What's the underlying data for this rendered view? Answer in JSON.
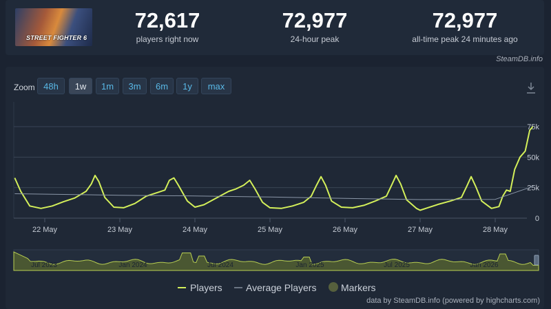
{
  "header": {
    "game_logo_text": "STREET FIGHTER 6",
    "stats": [
      {
        "value": "72,617",
        "label": "players right now"
      },
      {
        "value": "72,977",
        "label": "24-hour peak"
      },
      {
        "value": "72,977",
        "label": "all-time peak 24 minutes ago"
      }
    ],
    "credit": "SteamDB.info"
  },
  "toolbar": {
    "zoom_label": "Zoom",
    "zoom_options": [
      "48h",
      "1w",
      "1m",
      "3m",
      "6m",
      "1y",
      "max"
    ],
    "active_zoom": "1w",
    "download_icon": "download-icon"
  },
  "chart_data": {
    "type": "line",
    "xlabel": "",
    "ylabel": "",
    "x_tick_labels": [
      "22 May",
      "23 May",
      "24 May",
      "25 May",
      "26 May",
      "27 May",
      "28 May"
    ],
    "y_tick_labels": [
      "0",
      "25k",
      "50k",
      "75k"
    ],
    "ylim": [
      0,
      75000
    ],
    "x_range_days": [
      -0.4,
      6.5
    ],
    "grid": true,
    "series": [
      {
        "name": "Players",
        "color": "#d4f05a",
        "points": [
          [
            -0.4,
            33000
          ],
          [
            -0.32,
            22000
          ],
          [
            -0.2,
            10000
          ],
          [
            -0.05,
            8000
          ],
          [
            0.1,
            10000
          ],
          [
            0.25,
            13500
          ],
          [
            0.4,
            16500
          ],
          [
            0.55,
            22000
          ],
          [
            0.62,
            28000
          ],
          [
            0.67,
            35000
          ],
          [
            0.72,
            30000
          ],
          [
            0.8,
            17000
          ],
          [
            0.92,
            9000
          ],
          [
            1.05,
            8500
          ],
          [
            1.2,
            12000
          ],
          [
            1.35,
            18000
          ],
          [
            1.5,
            21000
          ],
          [
            1.6,
            23000
          ],
          [
            1.66,
            31000
          ],
          [
            1.72,
            33000
          ],
          [
            1.78,
            27000
          ],
          [
            1.9,
            14000
          ],
          [
            2.0,
            9000
          ],
          [
            2.12,
            11000
          ],
          [
            2.3,
            17000
          ],
          [
            2.45,
            22000
          ],
          [
            2.55,
            24000
          ],
          [
            2.65,
            27000
          ],
          [
            2.73,
            31000
          ],
          [
            2.8,
            24000
          ],
          [
            2.9,
            13000
          ],
          [
            3.0,
            8500
          ],
          [
            3.15,
            8000
          ],
          [
            3.3,
            10000
          ],
          [
            3.45,
            13000
          ],
          [
            3.55,
            18000
          ],
          [
            3.62,
            27000
          ],
          [
            3.68,
            34000
          ],
          [
            3.74,
            27000
          ],
          [
            3.82,
            14000
          ],
          [
            3.95,
            9000
          ],
          [
            4.1,
            8500
          ],
          [
            4.25,
            10500
          ],
          [
            4.4,
            14000
          ],
          [
            4.55,
            18000
          ],
          [
            4.62,
            27000
          ],
          [
            4.68,
            35000
          ],
          [
            4.74,
            28000
          ],
          [
            4.82,
            15000
          ],
          [
            4.95,
            8000
          ],
          [
            5.0,
            6500
          ],
          [
            5.1,
            8500
          ],
          [
            5.25,
            11500
          ],
          [
            5.4,
            14000
          ],
          [
            5.55,
            17000
          ],
          [
            5.62,
            26000
          ],
          [
            5.68,
            34000
          ],
          [
            5.74,
            26000
          ],
          [
            5.82,
            14000
          ],
          [
            5.95,
            8000
          ],
          [
            6.05,
            9500
          ],
          [
            6.1,
            18000
          ],
          [
            6.15,
            23000
          ],
          [
            6.2,
            22000
          ],
          [
            6.26,
            40000
          ],
          [
            6.33,
            50000
          ],
          [
            6.4,
            55000
          ],
          [
            6.46,
            72000
          ],
          [
            6.5,
            75000
          ]
        ]
      },
      {
        "name": "Average Players",
        "color": "#8b97a8",
        "points": [
          [
            -0.4,
            20000
          ],
          [
            1.0,
            18800
          ],
          [
            2.0,
            18200
          ],
          [
            3.0,
            17300
          ],
          [
            4.0,
            16200
          ],
          [
            5.0,
            15200
          ],
          [
            6.0,
            15400
          ],
          [
            6.5,
            26000
          ]
        ]
      }
    ],
    "navigator": {
      "x_tick_labels": [
        "Jul 2023",
        "Jan 2024",
        "Jul 2024",
        "Jan 2025",
        "Jul 2025",
        "Jan 2026"
      ],
      "color": "#b9cf52"
    }
  },
  "legend": {
    "items": [
      {
        "label": "Players",
        "color": "#d4f05a"
      },
      {
        "label": "Average Players",
        "color": "#6b7583"
      },
      {
        "label": "Markers",
        "color": "#56603d"
      }
    ]
  },
  "footer": {
    "credit": "data by SteamDB.info (powered by highcharts.com)"
  }
}
